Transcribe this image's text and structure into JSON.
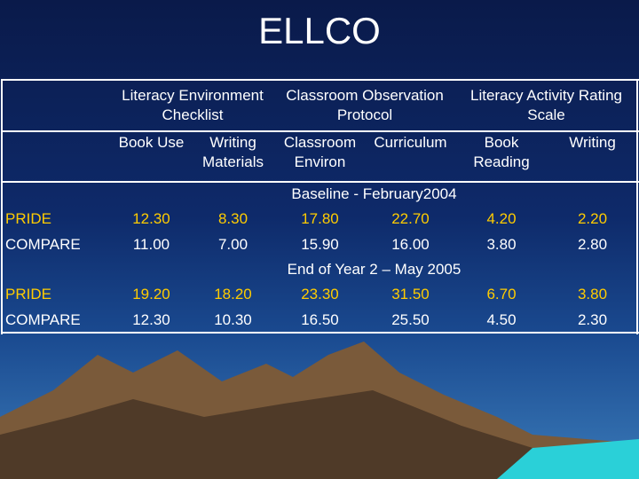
{
  "title": "ELLCO",
  "table": {
    "header_groups": [
      "Literacy Environment Checklist",
      "Classroom Observation Protocol",
      "Literacy Activity Rating Scale"
    ],
    "columns": [
      "Book Use",
      "Writing Materials",
      "Classroom Environ",
      "Curriculum",
      "Book Reading",
      "Writing"
    ],
    "sections": [
      {
        "label": "Baseline - February2004",
        "rows": [
          {
            "name": "PRIDE",
            "values": [
              "12.30",
              "8.30",
              "17.80",
              "22.70",
              "4.20",
              "2.20"
            ]
          },
          {
            "name": "COMPARE",
            "values": [
              "11.00",
              "7.00",
              "15.90",
              "16.00",
              "3.80",
              "2.80"
            ]
          }
        ]
      },
      {
        "label": "End of Year 2 – May 2005",
        "rows": [
          {
            "name": "PRIDE",
            "values": [
              "19.20",
              "18.20",
              "23.30",
              "31.50",
              "6.70",
              "3.80"
            ]
          },
          {
            "name": "COMPARE",
            "values": [
              "12.30",
              "10.30",
              "16.50",
              "25.50",
              "4.50",
              "2.30"
            ]
          }
        ]
      }
    ]
  }
}
